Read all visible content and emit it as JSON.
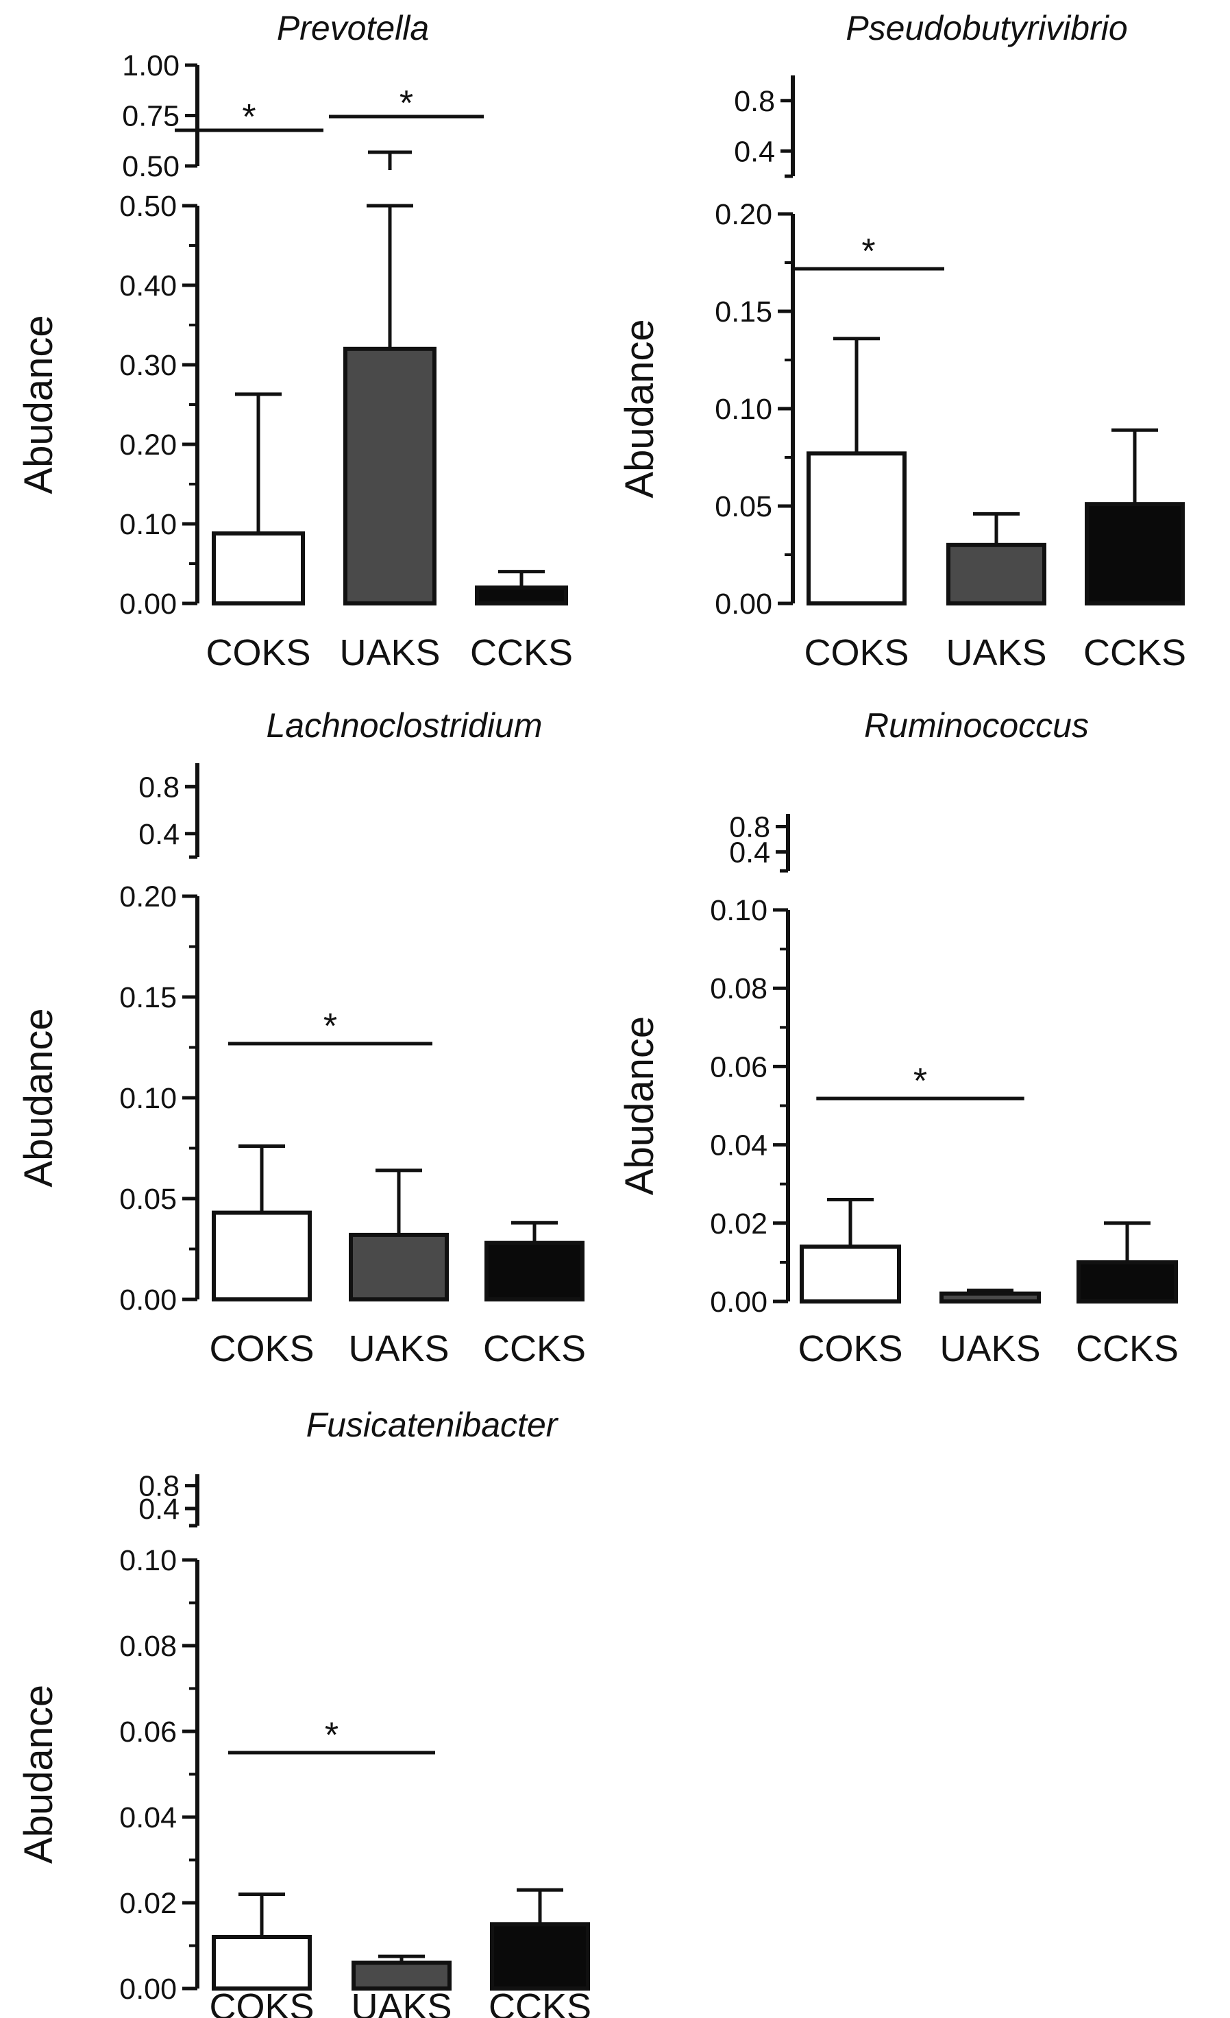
{
  "chart_data": [
    {
      "type": "bar",
      "title": "Prevotella",
      "ylabel": "Abudance",
      "categories": [
        "COKS",
        "UAKS",
        "CCKS"
      ],
      "values": [
        0.088,
        0.32,
        0.02
      ],
      "errors": [
        0.175,
        0.26,
        0.02
      ],
      "bar_colors": [
        "#ffffff",
        "#4a4a4a",
        "#0a0a0a"
      ],
      "ylim": [
        0,
        0.5
      ],
      "yticks": [
        "0.00",
        "0.10",
        "0.20",
        "0.30",
        "0.40",
        "0.50"
      ],
      "broken_axis": {
        "ylim": [
          0.5,
          1.0
        ],
        "yticks": [
          "0.50",
          "0.75",
          "1.00"
        ]
      },
      "significance": [
        {
          "from": 0,
          "to": 1,
          "label": "*"
        },
        {
          "from": 1,
          "to": 2,
          "label": "*"
        }
      ]
    },
    {
      "type": "bar",
      "title": "Pseudobutyrivibrio",
      "ylabel": "Abudance",
      "categories": [
        "COKS",
        "UAKS",
        "CCKS"
      ],
      "values": [
        0.077,
        0.03,
        0.051
      ],
      "errors": [
        0.059,
        0.016,
        0.038
      ],
      "bar_colors": [
        "#ffffff",
        "#4a4a4a",
        "#0a0a0a"
      ],
      "ylim": [
        0,
        0.2
      ],
      "yticks": [
        "0.00",
        "0.05",
        "0.10",
        "0.15",
        "0.20"
      ],
      "broken_axis": {
        "ylim": [
          0.2,
          1.0
        ],
        "yticks": [
          "0.4",
          "0.8"
        ]
      },
      "significance": [
        {
          "from": 0,
          "to": 0,
          "label": "*"
        }
      ]
    },
    {
      "type": "bar",
      "title": "Lachnoclostridium",
      "ylabel": "Abudance",
      "categories": [
        "COKS",
        "UAKS",
        "CCKS"
      ],
      "values": [
        0.043,
        0.032,
        0.028
      ],
      "errors": [
        0.033,
        0.032,
        0.01
      ],
      "bar_colors": [
        "#ffffff",
        "#4a4a4a",
        "#0a0a0a"
      ],
      "ylim": [
        0,
        0.2
      ],
      "yticks": [
        "0.00",
        "0.05",
        "0.10",
        "0.15",
        "0.20"
      ],
      "broken_axis": {
        "ylim": [
          0.2,
          1.0
        ],
        "yticks": [
          "0.4",
          "0.8"
        ]
      },
      "significance": [
        {
          "from": 0,
          "to": 1,
          "label": "*"
        }
      ]
    },
    {
      "type": "bar",
      "title": "Ruminococcus",
      "ylabel": "Abudance",
      "categories": [
        "COKS",
        "UAKS",
        "CCKS"
      ],
      "values": [
        0.014,
        0.002,
        0.01
      ],
      "errors": [
        0.012,
        0.0008,
        0.01
      ],
      "bar_colors": [
        "#ffffff",
        "#4a4a4a",
        "#0a0a0a"
      ],
      "ylim": [
        0,
        0.1
      ],
      "yticks": [
        "0.00",
        "0.02",
        "0.04",
        "0.06",
        "0.08",
        "0.10"
      ],
      "broken_axis": {
        "ylim": [
          0.1,
          1.0
        ],
        "yticks": [
          "0.4",
          "0.8"
        ]
      },
      "significance": [
        {
          "from": 0,
          "to": 1,
          "label": "*"
        }
      ]
    },
    {
      "type": "bar",
      "title": "Fusicatenibacter",
      "ylabel": "Abudance",
      "categories": [
        "COKS",
        "UAKS",
        "CCKS"
      ],
      "values": [
        0.012,
        0.006,
        0.015
      ],
      "errors": [
        0.01,
        0.0015,
        0.008
      ],
      "bar_colors": [
        "#ffffff",
        "#4a4a4a",
        "#0a0a0a"
      ],
      "ylim": [
        0,
        0.1
      ],
      "yticks": [
        "0.00",
        "0.02",
        "0.04",
        "0.06",
        "0.08",
        "0.10"
      ],
      "broken_axis": {
        "ylim": [
          0.1,
          1.0
        ],
        "yticks": [
          "0.4",
          "0.8"
        ]
      },
      "significance": [
        {
          "from": 0,
          "to": 1,
          "label": "*"
        }
      ]
    }
  ]
}
